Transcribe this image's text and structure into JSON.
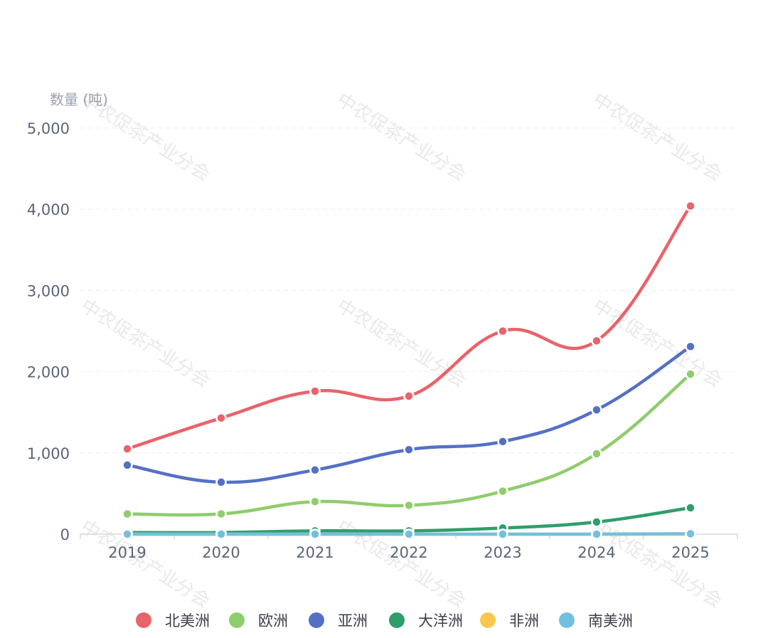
{
  "watermark": "中农促茶产业分会",
  "chart_data": {
    "type": "line",
    "smooth": true,
    "ylabel": "数量 (吨)",
    "x": [
      "2019",
      "2020",
      "2021",
      "2022",
      "2023",
      "2024",
      "2025"
    ],
    "ylim": [
      0,
      5000
    ],
    "yticks": [
      0,
      1000,
      2000,
      3000,
      4000,
      5000
    ],
    "ytick_labels": [
      "0",
      "1,000",
      "2,000",
      "3,000",
      "4,000",
      "5,000"
    ],
    "grid": true,
    "legend_position": "bottom",
    "series": [
      {
        "name": "北美洲",
        "color": "#e8636a",
        "values": [
          1050,
          1430,
          1760,
          1700,
          2500,
          2380,
          4040
        ]
      },
      {
        "name": "欧洲",
        "color": "#8fcd6c",
        "values": [
          250,
          250,
          400,
          355,
          530,
          990,
          1970
        ]
      },
      {
        "name": "亚洲",
        "color": "#5470c6",
        "values": [
          850,
          640,
          790,
          1040,
          1140,
          1530,
          2310
        ]
      },
      {
        "name": "大洋洲",
        "color": "#2e9e6c",
        "values": [
          20,
          20,
          40,
          40,
          75,
          150,
          325
        ]
      },
      {
        "name": "非洲",
        "color": "#f9c74f",
        "values": [
          0,
          0,
          0,
          0,
          0,
          0,
          0
        ]
      },
      {
        "name": "南美洲",
        "color": "#73c0de",
        "values": [
          0,
          0,
          0,
          0,
          0,
          0,
          5
        ]
      }
    ]
  }
}
